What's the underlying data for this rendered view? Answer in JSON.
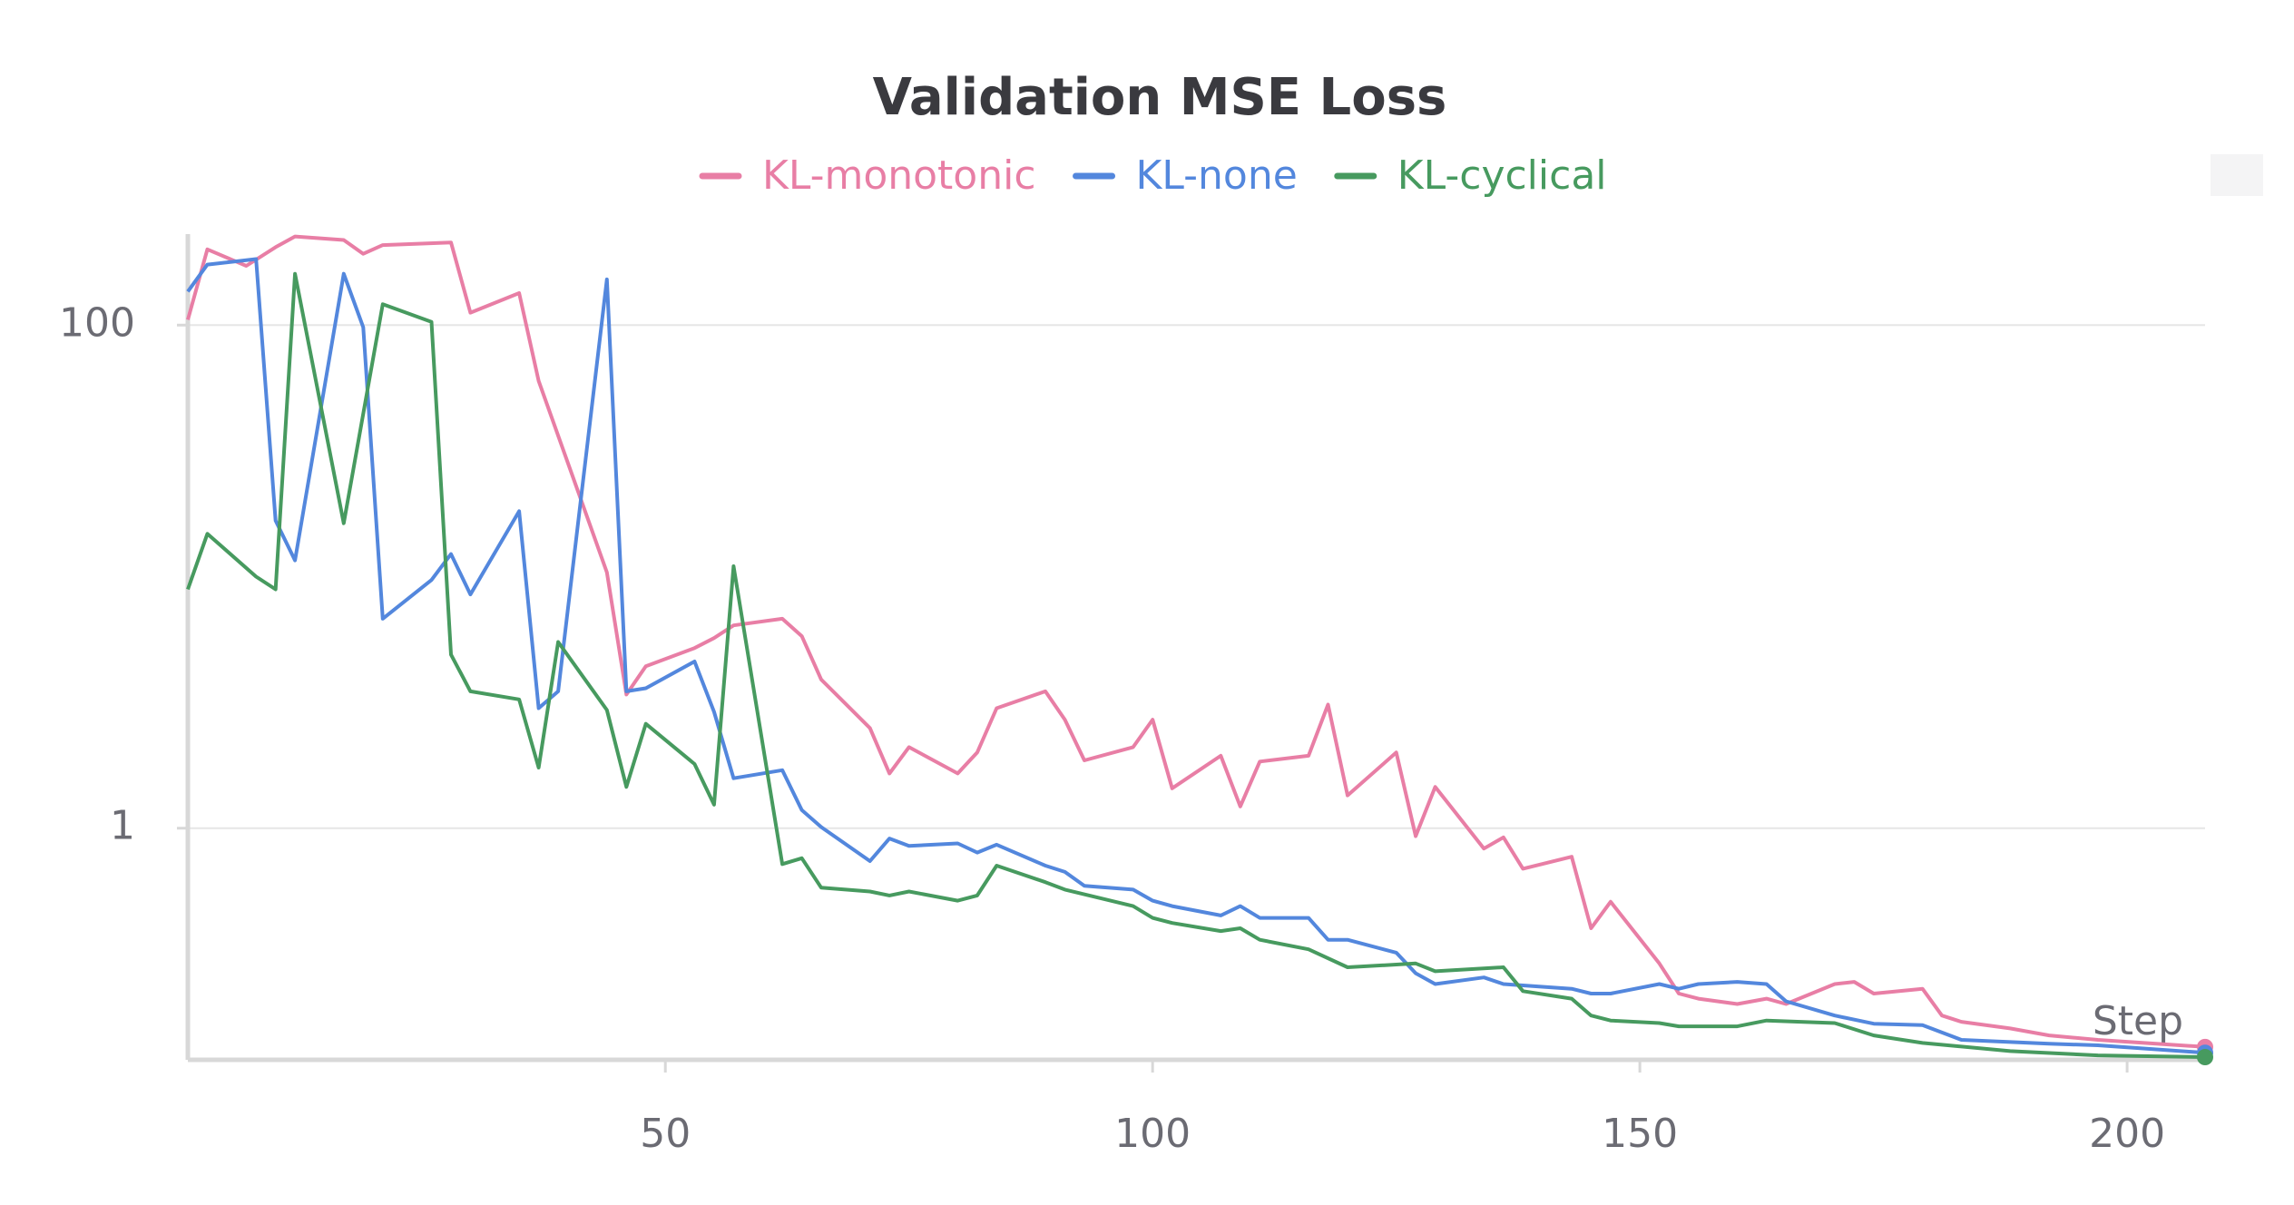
{
  "chart_data": {
    "type": "line",
    "title": "Validation MSE Loss",
    "x_label": "Step",
    "yscale": "log",
    "grid": true,
    "xlim": [
      1,
      208
    ],
    "xticks": [
      50,
      100,
      150,
      200
    ],
    "ylim": [
      0.12,
      230
    ],
    "yticks": [
      1,
      100
    ],
    "series": [
      {
        "name": "KL-monotonic",
        "color": "#e87ea5",
        "x": [
          1,
          3,
          7,
          10,
          12,
          17,
          19,
          21,
          28,
          30,
          35,
          37,
          44,
          46,
          48,
          53,
          55,
          57,
          62,
          64,
          66,
          71,
          73,
          75,
          80,
          82,
          84,
          89,
          91,
          93,
          98,
          100,
          102,
          107,
          109,
          111,
          116,
          118,
          120,
          125,
          127,
          129,
          134,
          136,
          138,
          143,
          145,
          147,
          152,
          154,
          156,
          160,
          163,
          165,
          170,
          172,
          174,
          179,
          181,
          183,
          188,
          192,
          197,
          208
        ],
        "values": [
          105,
          200,
          172,
          204,
          225,
          218,
          192,
          208,
          213,
          112,
          134,
          60,
          10.4,
          3.4,
          4.4,
          5.2,
          5.7,
          6.4,
          6.8,
          5.8,
          3.9,
          2.5,
          1.65,
          2.1,
          1.65,
          2.0,
          3.0,
          3.5,
          2.7,
          1.86,
          2.1,
          2.7,
          1.44,
          1.94,
          1.22,
          1.84,
          1.94,
          3.1,
          1.35,
          2.0,
          0.93,
          1.46,
          0.83,
          0.92,
          0.69,
          0.77,
          0.4,
          0.51,
          0.29,
          0.22,
          0.21,
          0.2,
          0.21,
          0.2,
          0.24,
          0.245,
          0.22,
          0.23,
          0.18,
          0.17,
          0.16,
          0.15,
          0.144,
          0.135
        ]
      },
      {
        "name": "KL-none",
        "color": "#5387dd",
        "x": [
          1,
          3,
          8,
          10,
          12,
          17,
          19,
          21,
          26,
          28,
          30,
          35,
          37,
          39,
          44,
          46,
          48,
          53,
          55,
          57,
          62,
          64,
          66,
          71,
          73,
          75,
          80,
          82,
          84,
          89,
          91,
          93,
          98,
          100,
          102,
          107,
          109,
          111,
          116,
          118,
          120,
          125,
          127,
          129,
          134,
          136,
          143,
          145,
          147,
          152,
          154,
          156,
          160,
          163,
          165,
          170,
          174,
          179,
          183,
          192,
          197,
          208
        ],
        "values": [
          136,
          174,
          183,
          16.7,
          11.6,
          160,
          98,
          6.8,
          9.7,
          12.3,
          8.5,
          18.2,
          3.0,
          3.5,
          152,
          3.5,
          3.6,
          4.6,
          2.9,
          1.58,
          1.7,
          1.18,
          1.01,
          0.74,
          0.91,
          0.85,
          0.87,
          0.8,
          0.86,
          0.71,
          0.67,
          0.59,
          0.57,
          0.515,
          0.49,
          0.45,
          0.49,
          0.44,
          0.44,
          0.36,
          0.36,
          0.32,
          0.265,
          0.24,
          0.255,
          0.24,
          0.23,
          0.22,
          0.22,
          0.24,
          0.23,
          0.24,
          0.245,
          0.24,
          0.205,
          0.18,
          0.167,
          0.165,
          0.144,
          0.139,
          0.137,
          0.128
        ]
      },
      {
        "name": "KL-cyclical",
        "color": "#479a5f",
        "x": [
          1,
          3,
          8,
          10,
          12,
          17,
          21,
          26,
          28,
          30,
          35,
          37,
          39,
          44,
          46,
          48,
          53,
          55,
          57,
          62,
          64,
          66,
          71,
          73,
          75,
          80,
          82,
          84,
          89,
          91,
          98,
          100,
          102,
          107,
          109,
          111,
          116,
          120,
          127,
          129,
          136,
          138,
          143,
          145,
          147,
          152,
          154,
          160,
          163,
          170,
          174,
          179,
          188,
          197,
          208
        ],
        "values": [
          8.9,
          14.8,
          10,
          8.9,
          160,
          16.3,
          121,
          103,
          4.9,
          3.5,
          3.25,
          1.74,
          5.5,
          2.95,
          1.46,
          2.6,
          1.8,
          1.24,
          11,
          0.72,
          0.76,
          0.58,
          0.56,
          0.54,
          0.56,
          0.515,
          0.54,
          0.71,
          0.61,
          0.57,
          0.49,
          0.44,
          0.42,
          0.39,
          0.4,
          0.36,
          0.33,
          0.28,
          0.29,
          0.27,
          0.28,
          0.225,
          0.21,
          0.18,
          0.172,
          0.168,
          0.163,
          0.163,
          0.172,
          0.168,
          0.15,
          0.14,
          0.13,
          0.125,
          0.123
        ]
      }
    ]
  }
}
